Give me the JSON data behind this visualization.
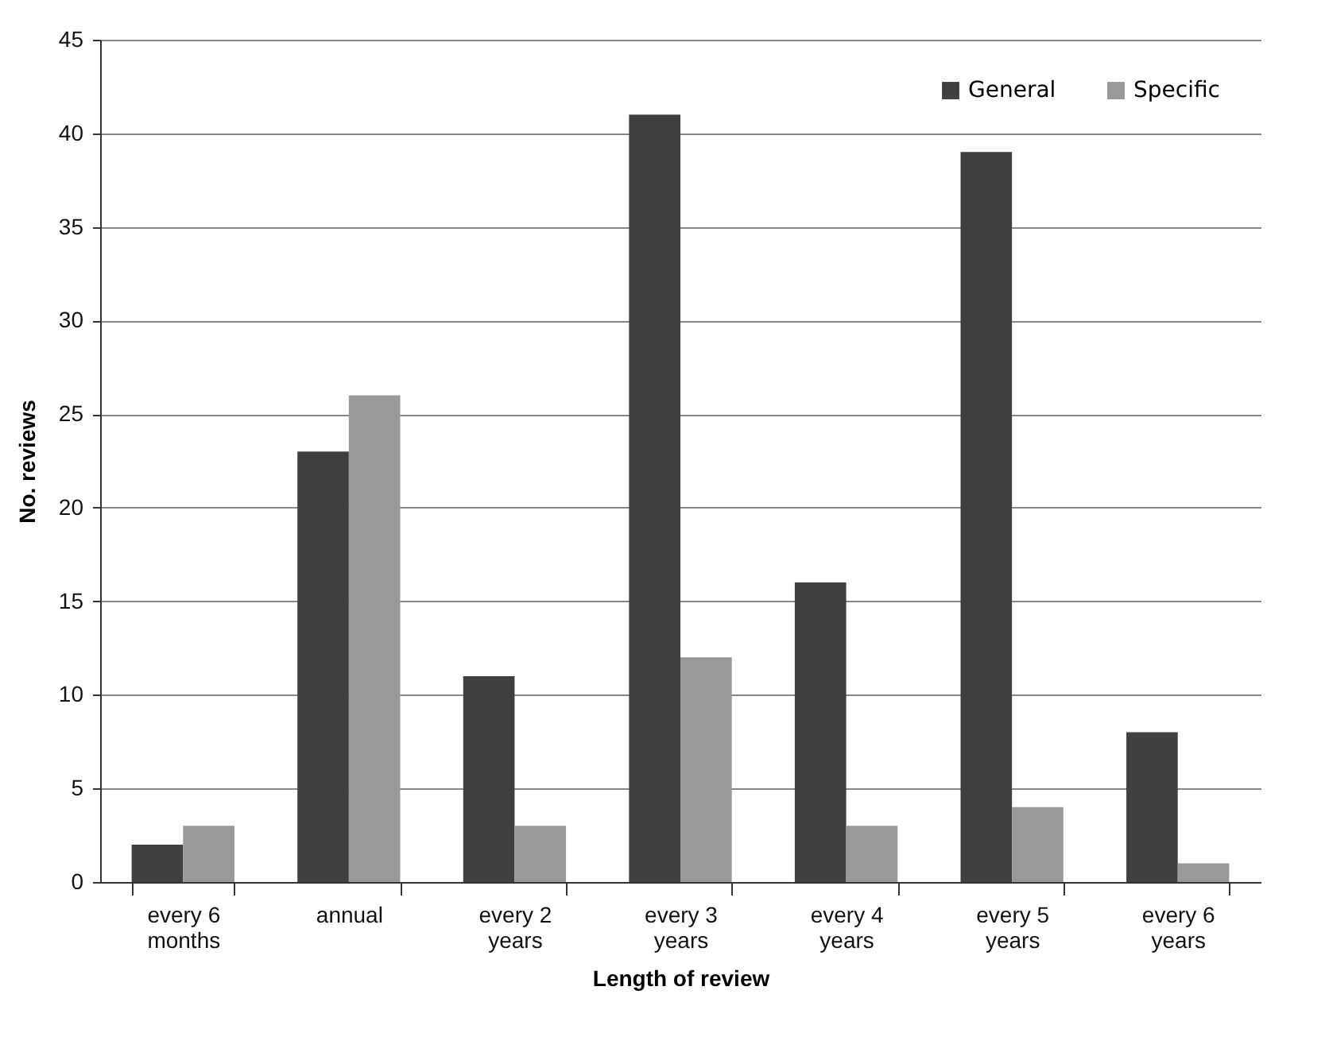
{
  "chart_data": {
    "type": "bar",
    "xlabel": "Length of review",
    "ylabel": "No. reviews",
    "categories": [
      "every 6 months",
      "annual",
      "every 2 years",
      "every 3 years",
      "every 4 years",
      "every 5 years",
      "every 6 years"
    ],
    "series": [
      {
        "name": "General",
        "color": "#404040",
        "values": [
          2,
          23,
          11,
          41,
          16,
          39,
          8
        ]
      },
      {
        "name": "Specific",
        "color": "#999999",
        "values": [
          3,
          26,
          3,
          12,
          3,
          4,
          1
        ]
      }
    ],
    "ylim": [
      0,
      45
    ],
    "yticks": [
      0,
      5,
      10,
      15,
      20,
      25,
      30,
      35,
      40,
      45
    ],
    "grid": "y",
    "legend": "top right"
  }
}
